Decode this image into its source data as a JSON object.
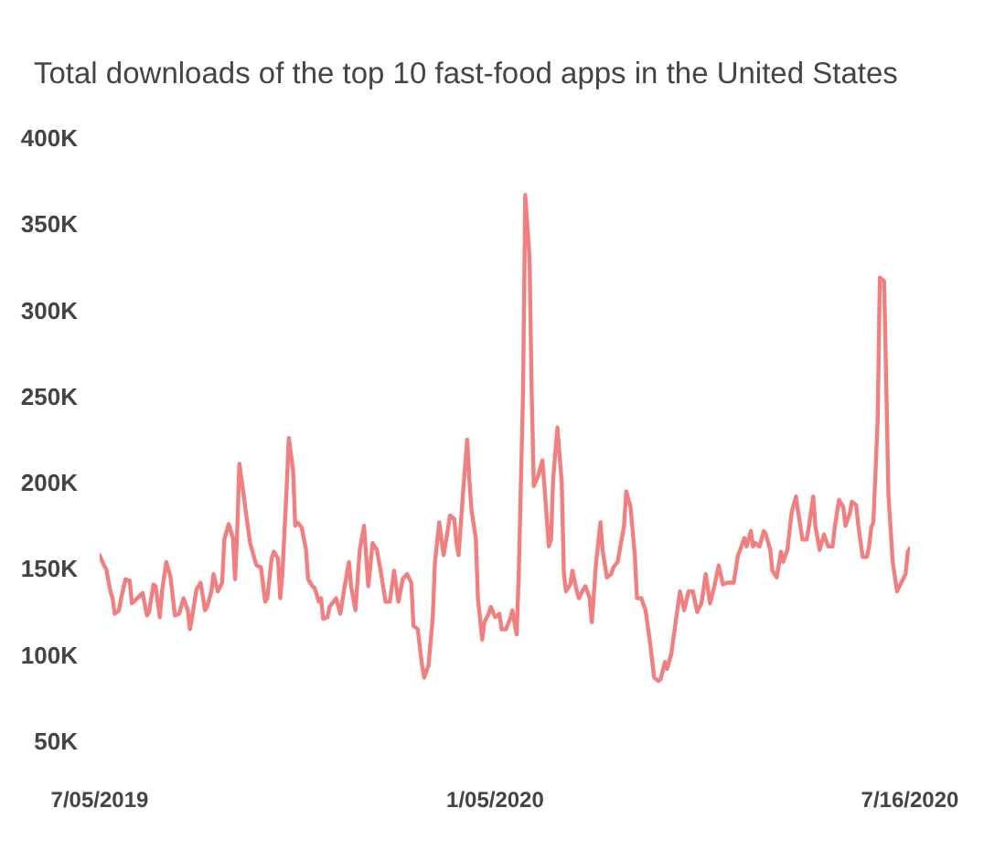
{
  "chart_data": {
    "type": "line",
    "title": "Total downloads of the top 10 fast-food apps in the United States",
    "x": [
      "2019-07-05",
      "2019-07-07",
      "2019-07-08",
      "2019-07-10",
      "2019-07-11",
      "2019-07-12",
      "2019-07-14",
      "2019-07-15",
      "2019-07-17",
      "2019-07-19",
      "2019-07-20",
      "2019-07-21",
      "2019-07-24",
      "2019-07-25",
      "2019-07-27",
      "2019-07-28",
      "2019-07-30",
      "2019-07-31",
      "2019-08-02",
      "2019-08-03",
      "2019-08-05",
      "2019-08-07",
      "2019-08-09",
      "2019-08-11",
      "2019-08-13",
      "2019-08-15",
      "2019-08-16",
      "2019-08-17",
      "2019-08-19",
      "2019-08-21",
      "2019-08-23",
      "2019-08-24",
      "2019-08-26",
      "2019-08-27",
      "2019-08-29",
      "2019-08-31",
      "2019-09-01",
      "2019-09-03",
      "2019-09-05",
      "2019-09-06",
      "2019-09-07",
      "2019-09-08",
      "2019-09-10",
      "2019-09-11",
      "2019-09-13",
      "2019-09-15",
      "2019-09-16",
      "2019-09-18",
      "2019-09-20",
      "2019-09-21",
      "2019-09-23",
      "2019-09-24",
      "2019-09-26",
      "2019-09-27",
      "2019-09-28",
      "2019-09-30",
      "2019-10-01",
      "2019-10-03",
      "2019-10-04",
      "2019-10-05",
      "2019-10-07",
      "2019-10-09",
      "2019-10-10",
      "2019-10-12",
      "2019-10-13",
      "2019-10-15",
      "2019-10-16",
      "2019-10-17",
      "2019-10-19",
      "2019-10-20",
      "2019-10-23",
      "2019-10-25",
      "2019-10-27",
      "2019-10-29",
      "2019-10-30",
      "2019-11-01",
      "2019-11-03",
      "2019-11-05",
      "2019-11-07",
      "2019-11-09",
      "2019-11-11",
      "2019-11-13",
      "2019-11-15",
      "2019-11-17",
      "2019-11-19",
      "2019-11-21",
      "2019-11-23",
      "2019-11-25",
      "2019-11-27",
      "2019-11-28",
      "2019-11-30",
      "2019-12-02",
      "2019-12-03",
      "2019-12-05",
      "2019-12-07",
      "2019-12-08",
      "2019-12-10",
      "2019-12-12",
      "2019-12-13",
      "2019-12-15",
      "2019-12-17",
      "2019-12-18",
      "2019-12-19",
      "2019-12-21",
      "2019-12-23",
      "2019-12-24",
      "2019-12-25",
      "2019-12-27",
      "2019-12-28",
      "2019-12-30",
      "2019-12-31",
      "2020-01-02",
      "2020-01-03",
      "2020-01-05",
      "2020-01-07",
      "2020-01-08",
      "2020-01-10",
      "2020-01-12",
      "2020-01-13",
      "2020-01-15",
      "2020-01-16",
      "2020-01-18",
      "2020-01-19",
      "2020-01-21",
      "2020-01-22",
      "2020-01-23",
      "2020-01-25",
      "2020-01-27",
      "2020-01-28",
      "2020-01-30",
      "2020-01-31",
      "2020-02-01",
      "2020-02-03",
      "2020-02-05",
      "2020-02-06",
      "2020-02-07",
      "2020-02-09",
      "2020-02-10",
      "2020-02-12",
      "2020-02-13",
      "2020-02-15",
      "2020-02-16",
      "2020-02-18",
      "2020-02-19",
      "2020-02-21",
      "2020-02-23",
      "2020-02-24",
      "2020-02-26",
      "2020-02-28",
      "2020-02-29",
      "2020-03-02",
      "2020-03-05",
      "2020-03-06",
      "2020-03-08",
      "2020-03-10",
      "2020-03-11",
      "2020-03-13",
      "2020-03-15",
      "2020-03-17",
      "2020-03-19",
      "2020-03-21",
      "2020-03-22",
      "2020-03-24",
      "2020-03-25",
      "2020-03-27",
      "2020-03-29",
      "2020-03-31",
      "2020-04-02",
      "2020-04-04",
      "2020-04-06",
      "2020-04-08",
      "2020-04-10",
      "2020-04-12",
      "2020-04-14",
      "2020-04-16",
      "2020-04-18",
      "2020-04-20",
      "2020-04-22",
      "2020-04-25",
      "2020-04-27",
      "2020-04-28",
      "2020-04-30",
      "2020-05-01",
      "2020-05-03",
      "2020-05-04",
      "2020-05-05",
      "2020-05-07",
      "2020-05-09",
      "2020-05-10",
      "2020-05-12",
      "2020-05-13",
      "2020-05-15",
      "2020-05-17",
      "2020-05-18",
      "2020-05-20",
      "2020-05-22",
      "2020-05-24",
      "2020-05-25",
      "2020-05-27",
      "2020-05-29",
      "2020-05-31",
      "2020-06-01",
      "2020-06-02",
      "2020-06-04",
      "2020-06-06",
      "2020-06-08",
      "2020-06-10",
      "2020-06-11",
      "2020-06-13",
      "2020-06-15",
      "2020-06-16",
      "2020-06-18",
      "2020-06-19",
      "2020-06-21",
      "2020-06-22",
      "2020-06-24",
      "2020-06-26",
      "2020-06-27",
      "2020-06-28",
      "2020-06-29",
      "2020-07-01",
      "2020-07-02",
      "2020-07-04",
      "2020-07-05",
      "2020-07-06",
      "2020-07-08",
      "2020-07-10",
      "2020-07-12",
      "2020-07-14",
      "2020-07-15",
      "2020-07-16"
    ],
    "series": [
      {
        "color": "#f17f80",
        "values": [
          158000,
          152000,
          150000,
          137000,
          133000,
          124000,
          126000,
          133000,
          144000,
          143000,
          130000,
          131000,
          135000,
          136000,
          123000,
          125000,
          141000,
          140000,
          122000,
          137000,
          154000,
          145000,
          123000,
          124000,
          133000,
          126000,
          115000,
          122000,
          138000,
          142000,
          126000,
          128000,
          137000,
          147000,
          137000,
          142000,
          167000,
          176000,
          168000,
          144000,
          172000,
          211000,
          193000,
          183000,
          165000,
          156000,
          152000,
          151000,
          131000,
          133000,
          156000,
          160000,
          156000,
          133000,
          147000,
          197000,
          226000,
          207000,
          175000,
          177000,
          174000,
          161000,
          144000,
          140000,
          139000,
          131000,
          133000,
          121000,
          122000,
          128000,
          133000,
          124000,
          140000,
          154000,
          140000,
          126000,
          161000,
          175000,
          140000,
          165000,
          161000,
          147000,
          131000,
          131000,
          149000,
          131000,
          144000,
          147000,
          142000,
          117000,
          115000,
          94000,
          87000,
          94000,
          122000,
          154000,
          177000,
          158000,
          165000,
          181000,
          179000,
          165000,
          158000,
          193000,
          225000,
          202000,
          184000,
          168000,
          133000,
          109000,
          119000,
          124000,
          128000,
          122000,
          124000,
          115000,
          115000,
          121000,
          126000,
          112000,
          147000,
          253000,
          367000,
          331000,
          253000,
          198000,
          204000,
          213000,
          197000,
          163000,
          167000,
          202000,
          232000,
          200000,
          147000,
          137000,
          141000,
          149000,
          137000,
          133000,
          138000,
          140000,
          133000,
          119000,
          154000,
          177000,
          161000,
          145000,
          147000,
          151000,
          154000,
          175000,
          195000,
          186000,
          158000,
          133000,
          133000,
          126000,
          108000,
          87000,
          85000,
          86000,
          96000,
          92000,
          101000,
          119000,
          137000,
          126000,
          137000,
          137000,
          125000,
          130000,
          147000,
          130000,
          140000,
          152000,
          141000,
          142000,
          142000,
          158000,
          161000,
          168000,
          163000,
          172000,
          163000,
          165000,
          163000,
          172000,
          170000,
          161000,
          149000,
          145000,
          160000,
          154000,
          161000,
          183000,
          192000,
          183000,
          167000,
          167000,
          183000,
          192000,
          175000,
          161000,
          170000,
          163000,
          163000,
          174000,
          190000,
          186000,
          175000,
          182000,
          189000,
          187000,
          175000,
          157000,
          157000,
          163000,
          174000,
          177000,
          236000,
          319000,
          317000,
          257000,
          193000,
          154000,
          137000,
          142000,
          147000,
          160000,
          162000
        ]
      }
    ],
    "xlim": [
      "2019-07-05",
      "2020-07-16"
    ],
    "xticks": [
      {
        "value": "2019-07-05",
        "label": "7/05/2019"
      },
      {
        "value": "2020-01-05",
        "label": "1/05/2020"
      },
      {
        "value": "2020-07-16",
        "label": "7/16/2020"
      }
    ],
    "ylim": [
      50000,
      400000
    ],
    "yticks": [
      {
        "value": 50000,
        "label": "50K"
      },
      {
        "value": 100000,
        "label": "100K"
      },
      {
        "value": 150000,
        "label": "150K"
      },
      {
        "value": 200000,
        "label": "200K"
      },
      {
        "value": 250000,
        "label": "250K"
      },
      {
        "value": 300000,
        "label": "300K"
      },
      {
        "value": 350000,
        "label": "350K"
      },
      {
        "value": 400000,
        "label": "400K"
      }
    ],
    "line_style": "solid"
  }
}
